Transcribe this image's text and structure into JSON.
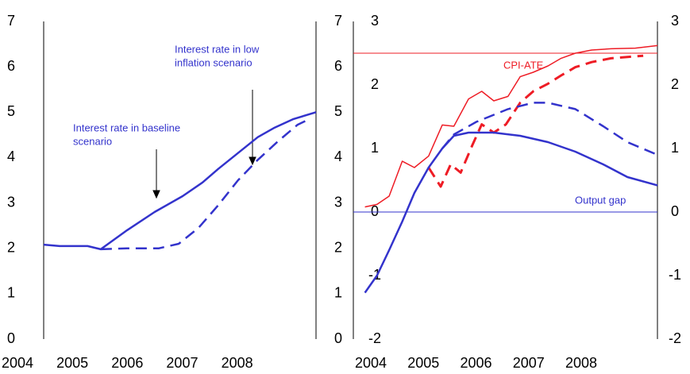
{
  "chart_data": [
    {
      "type": "line",
      "xlim": [
        2004.43,
        2009.39
      ],
      "xticks": [
        2004,
        2005,
        2006,
        2007,
        2008
      ],
      "ylim": [
        0,
        7
      ],
      "yticks": [
        0,
        1,
        2,
        3,
        4,
        5,
        6,
        7
      ],
      "series": [
        {
          "color": "#3333cc",
          "dash": false,
          "x": [
            2004.43,
            2004.72,
            2005.23,
            2005.47,
            2005.95,
            2006.45,
            2006.96,
            2007.32,
            2007.61,
            2007.97,
            2008.33,
            2008.62,
            2008.98,
            2009.39
          ],
          "values": [
            2.08,
            2.05,
            2.05,
            1.98,
            2.4,
            2.8,
            3.15,
            3.45,
            3.75,
            4.1,
            4.45,
            4.65,
            4.85,
            5.0
          ]
        },
        {
          "color": "#3333cc",
          "dash": true,
          "x": [
            2005.47,
            2005.95,
            2006.53,
            2006.89,
            2007.25,
            2007.61,
            2007.97,
            2008.33,
            2008.69,
            2009.05,
            2009.27
          ],
          "values": [
            1.98,
            2.0,
            2.0,
            2.1,
            2.45,
            2.95,
            3.5,
            3.95,
            4.35,
            4.72,
            4.85
          ]
        }
      ],
      "annotations": [
        {
          "lines": [
            "Interest rate in baseline",
            "scenario"
          ],
          "color": "#3333cc"
        },
        {
          "lines": [
            "Interest rate in low",
            "inflation scenario"
          ],
          "color": "#3333cc"
        }
      ]
    },
    {
      "type": "line",
      "xlim": [
        2003.67,
        2009.45
      ],
      "xticks": [
        2004,
        2005,
        2006,
        2007,
        2008
      ],
      "ylim": [
        -2,
        3
      ],
      "yticks": [
        -2,
        -1,
        0,
        1,
        2,
        3
      ],
      "hlines": [
        {
          "value": 2.5,
          "color": "#ee1c25"
        },
        {
          "value": 0,
          "color": "#3333cc"
        }
      ],
      "series": [
        {
          "color": "#ee1c25",
          "dash": false,
          "width": 1.5,
          "x": [
            2003.89,
            2004.12,
            2004.35,
            2004.6,
            2004.83,
            2005.1,
            2005.36,
            2005.58,
            2005.86,
            2006.11,
            2006.34,
            2006.61,
            2006.84,
            2007.09,
            2007.37,
            2007.62,
            2007.89,
            2008.2,
            2008.57,
            2009.03,
            2009.45
          ],
          "values": [
            0.08,
            0.12,
            0.25,
            0.8,
            0.7,
            0.88,
            1.37,
            1.35,
            1.78,
            1.9,
            1.75,
            1.82,
            2.13,
            2.2,
            2.3,
            2.42,
            2.5,
            2.55,
            2.57,
            2.58,
            2.62
          ]
        },
        {
          "color": "#ee1c25",
          "dash": true,
          "width": 3,
          "x": [
            2005.1,
            2005.33,
            2005.52,
            2005.71,
            2005.93,
            2006.11,
            2006.34,
            2006.57,
            2006.84,
            2007.09,
            2007.37,
            2007.62,
            2007.89,
            2008.2,
            2008.57,
            2009.18
          ],
          "values": [
            0.7,
            0.4,
            0.75,
            0.62,
            1.05,
            1.38,
            1.25,
            1.38,
            1.72,
            1.9,
            2.02,
            2.15,
            2.28,
            2.36,
            2.42,
            2.46
          ]
        },
        {
          "color": "#3333cc",
          "dash": false,
          "width": 2.5,
          "x": [
            2003.89,
            2004.12,
            2004.35,
            2004.6,
            2004.83,
            2005.1,
            2005.36,
            2005.58,
            2005.86,
            2006.34,
            2006.84,
            2007.37,
            2007.89,
            2008.42,
            2008.88,
            2009.45
          ],
          "values": [
            -1.27,
            -1.0,
            -0.6,
            -0.15,
            0.3,
            0.7,
            1.0,
            1.2,
            1.25,
            1.25,
            1.2,
            1.1,
            0.95,
            0.75,
            0.55,
            0.42
          ]
        },
        {
          "color": "#3333cc",
          "dash": true,
          "width": 2.5,
          "x": [
            2005.36,
            2005.58,
            2006.01,
            2006.61,
            2007.09,
            2007.37,
            2007.89,
            2008.42,
            2008.88,
            2009.45
          ],
          "values": [
            1.0,
            1.22,
            1.42,
            1.62,
            1.72,
            1.72,
            1.62,
            1.35,
            1.1,
            0.9
          ]
        }
      ],
      "annotations": [
        {
          "lines": [
            "CPI-ATE"
          ],
          "color": "#ee1c25"
        },
        {
          "lines": [
            "Output gap"
          ],
          "color": "#3333cc"
        }
      ]
    }
  ]
}
